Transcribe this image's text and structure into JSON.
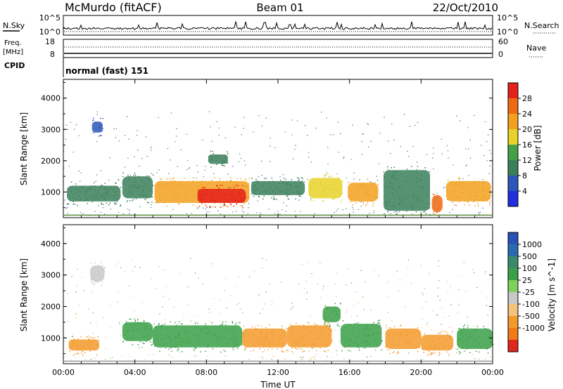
{
  "header": {
    "station": "McMurdo (fitACF)",
    "beam": "Beam 01",
    "date": "22/Oct/2010"
  },
  "noise_panel": {
    "left_label": "N.Sky",
    "right_label": "N.Search",
    "left_ticks": [
      "10^5",
      "10^0"
    ],
    "right_ticks": [
      "10^5",
      "10^0"
    ]
  },
  "freq_panel": {
    "left_label_1": "Freq.",
    "left_label_2": "[MHz]",
    "right_label": "Nave",
    "left_ticks": [
      "18",
      "8"
    ],
    "right_ticks": [
      "60",
      "0"
    ]
  },
  "cpid_panel": {
    "label": "CPID",
    "value": "normal (fast) 151"
  },
  "colors": {
    "power": [
      "#1f2fe0",
      "#2c56b8",
      "#3a7f5a",
      "#43a046",
      "#e8d22a",
      "#f2a11e",
      "#ee6a12",
      "#e4201a"
    ],
    "velocity": [
      "#e0271e",
      "#f07a14",
      "#f39a2a",
      "#f4c27a",
      "#c8c8c8",
      "#7ed05a",
      "#3aa048",
      "#3a8a6a",
      "#2a6ab0",
      "#2850b8"
    ]
  },
  "chart_data": [
    {
      "type": "heatmap",
      "title": "",
      "xlabel": "Time UT",
      "ylabel": "Slant Range [km]",
      "colorbar_label": "Power [dB]",
      "colorbar_ticks": [
        "28",
        "24",
        "20",
        "16",
        "12",
        "8",
        "4"
      ],
      "colorbar_range": [
        0,
        32
      ],
      "x_ticks": [
        "00:00",
        "04:00",
        "08:00",
        "12:00",
        "16:00",
        "20:00",
        "00:00"
      ],
      "xlim_hours": [
        0,
        24
      ],
      "y_ticks": [
        "4000",
        "3000",
        "2000",
        "1000"
      ],
      "ylim_km": [
        180,
        4600
      ],
      "patches": [
        {
          "t0": 0.2,
          "t1": 3.2,
          "r0": 700,
          "r1": 1200,
          "value": 8
        },
        {
          "t0": 1.6,
          "t1": 2.2,
          "r0": 2900,
          "r1": 3250,
          "value": 6
        },
        {
          "t0": 3.3,
          "t1": 5.0,
          "r0": 800,
          "r1": 1500,
          "value": 10
        },
        {
          "t0": 5.1,
          "t1": 10.4,
          "r0": 650,
          "r1": 1350,
          "value": 22
        },
        {
          "t0": 7.5,
          "t1": 10.2,
          "r0": 650,
          "r1": 1100,
          "value": 28
        },
        {
          "t0": 8.1,
          "t1": 9.2,
          "r0": 1900,
          "r1": 2200,
          "value": 10
        },
        {
          "t0": 10.5,
          "t1": 13.5,
          "r0": 900,
          "r1": 1350,
          "value": 11
        },
        {
          "t0": 13.7,
          "t1": 15.6,
          "r0": 800,
          "r1": 1450,
          "value": 18
        },
        {
          "t0": 15.9,
          "t1": 17.6,
          "r0": 700,
          "r1": 1300,
          "value": 21
        },
        {
          "t0": 17.9,
          "t1": 20.5,
          "r0": 400,
          "r1": 1700,
          "value": 11
        },
        {
          "t0": 20.6,
          "t1": 21.2,
          "r0": 350,
          "r1": 900,
          "value": 27
        },
        {
          "t0": 21.4,
          "t1": 23.9,
          "r0": 700,
          "r1": 1350,
          "value": 22
        }
      ]
    },
    {
      "type": "heatmap",
      "title": "",
      "xlabel": "Time UT",
      "ylabel": "Slant Range [km]",
      "colorbar_label": "Velocity [m s^-1]",
      "colorbar_ticks": [
        "1000",
        "500",
        "100",
        "25",
        "-25",
        "-100",
        "-500",
        "-1000"
      ],
      "x_ticks": [
        "00:00",
        "04:00",
        "08:00",
        "12:00",
        "16:00",
        "20:00",
        "00:00"
      ],
      "xlim_hours": [
        0,
        24
      ],
      "y_ticks": [
        "4000",
        "3000",
        "2000",
        "1000"
      ],
      "ylim_km": [
        180,
        4600
      ],
      "patches": [
        {
          "t0": 0.3,
          "t1": 2.0,
          "r0": 600,
          "r1": 950,
          "value": -300
        },
        {
          "t0": 1.5,
          "t1": 2.3,
          "r0": 2800,
          "r1": 3300,
          "value": 25
        },
        {
          "t0": 3.3,
          "t1": 5.0,
          "r0": 900,
          "r1": 1500,
          "value": 200
        },
        {
          "t0": 5.0,
          "t1": 10.0,
          "r0": 700,
          "r1": 1400,
          "value": 300
        },
        {
          "t0": 10.0,
          "t1": 12.5,
          "r0": 700,
          "r1": 1300,
          "value": -250
        },
        {
          "t0": 12.5,
          "t1": 15.0,
          "r0": 700,
          "r1": 1400,
          "value": -300
        },
        {
          "t0": 14.5,
          "t1": 15.5,
          "r0": 1500,
          "r1": 2000,
          "value": 200
        },
        {
          "t0": 15.5,
          "t1": 17.8,
          "r0": 700,
          "r1": 1450,
          "value": 300
        },
        {
          "t0": 18.0,
          "t1": 20.0,
          "r0": 650,
          "r1": 1300,
          "value": -300
        },
        {
          "t0": 20.0,
          "t1": 21.8,
          "r0": 600,
          "r1": 1100,
          "value": -400
        },
        {
          "t0": 22.0,
          "t1": 24.0,
          "r0": 650,
          "r1": 1300,
          "value": 200
        }
      ]
    }
  ]
}
